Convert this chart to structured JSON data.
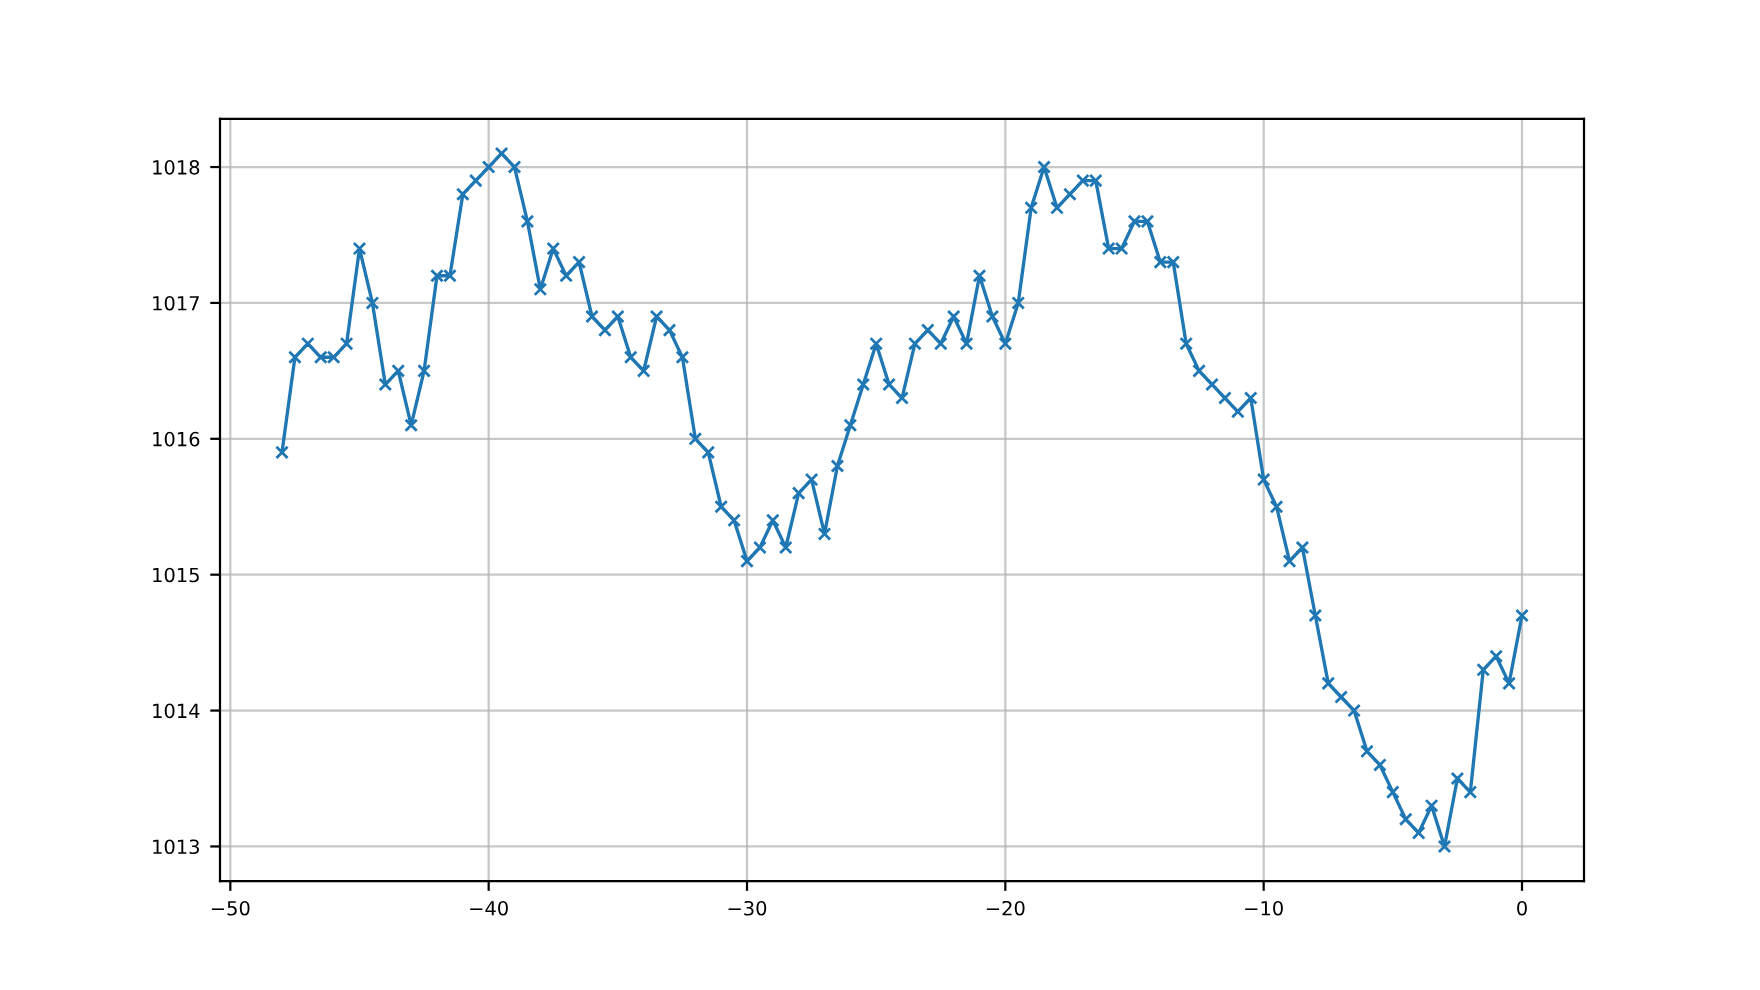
{
  "chart_data": {
    "type": "line",
    "x": [
      -48,
      -47.5,
      -47,
      -46.5,
      -46,
      -45.5,
      -45,
      -44.5,
      -44,
      -43.5,
      -43,
      -42.5,
      -42,
      -41.5,
      -41,
      -40.5,
      -40,
      -39.5,
      -39,
      -38.5,
      -38,
      -37.5,
      -37,
      -36.5,
      -36,
      -35.5,
      -35,
      -34.5,
      -34,
      -33.5,
      -33,
      -32.5,
      -32,
      -31.5,
      -31,
      -30.5,
      -30,
      -29.5,
      -29,
      -28.5,
      -28,
      -27.5,
      -27,
      -26.5,
      -26,
      -25.5,
      -25,
      -24.5,
      -24,
      -23.5,
      -23,
      -22.5,
      -22,
      -21.5,
      -21,
      -20.5,
      -20,
      -19.5,
      -19,
      -18.5,
      -18,
      -17.5,
      -17,
      -16.5,
      -16,
      -15.5,
      -15,
      -14.5,
      -14,
      -13.5,
      -13,
      -12.5,
      -12,
      -11.5,
      -11,
      -10.5,
      -10,
      -9.5,
      -9,
      -8.5,
      -8,
      -7.5,
      -7,
      -6.5,
      -6,
      -5.5,
      -5,
      -4.5,
      -4,
      -3.5,
      -3,
      -2.5,
      -2,
      -1.5,
      -1,
      -0.5,
      0
    ],
    "series": [
      {
        "color": "#1f77b4",
        "values": [
          1015.9,
          1016.6,
          1016.7,
          1016.6,
          1016.6,
          1016.7,
          1017.4,
          1017.0,
          1016.4,
          1016.5,
          1016.1,
          1016.5,
          1017.2,
          1017.2,
          1017.8,
          1017.9,
          1018.0,
          1018.1,
          1018.0,
          1017.6,
          1017.1,
          1017.4,
          1017.2,
          1017.3,
          1016.9,
          1016.8,
          1016.9,
          1016.6,
          1016.5,
          1016.9,
          1016.8,
          1016.6,
          1016.0,
          1015.9,
          1015.5,
          1015.4,
          1015.1,
          1015.2,
          1015.4,
          1015.2,
          1015.6,
          1015.7,
          1015.3,
          1015.8,
          1016.1,
          1016.4,
          1016.7,
          1016.4,
          1016.3,
          1016.7,
          1016.8,
          1016.7,
          1016.9,
          1016.7,
          1017.2,
          1016.9,
          1016.7,
          1017.0,
          1017.7,
          1018.0,
          1017.7,
          1017.8,
          1017.9,
          1017.9,
          1017.4,
          1017.4,
          1017.6,
          1017.6,
          1017.3,
          1017.3,
          1016.7,
          1016.5,
          1016.4,
          1016.3,
          1016.2,
          1016.3,
          1015.7,
          1015.5,
          1015.1,
          1015.2,
          1014.7,
          1014.2,
          1014.1,
          1014.0,
          1013.7,
          1013.6,
          1013.4,
          1013.2,
          1013.1,
          1013.3,
          1013.0,
          1013.5,
          1013.4,
          1014.3,
          1014.4,
          1014.2,
          1014.7
        ]
      }
    ],
    "xlim": [
      -50.4,
      2.4
    ],
    "ylim": [
      1012.745,
      1018.355
    ],
    "xticks": [
      {
        "value": -50,
        "label": "−50"
      },
      {
        "value": -40,
        "label": "−40"
      },
      {
        "value": -30,
        "label": "−30"
      },
      {
        "value": -20,
        "label": "−20"
      },
      {
        "value": -10,
        "label": "−10"
      },
      0
    ],
    "yticks": [
      1013,
      1014,
      1015,
      1016,
      1017,
      1018
    ],
    "grid": true,
    "marker": "cross",
    "line_style": "solid"
  }
}
